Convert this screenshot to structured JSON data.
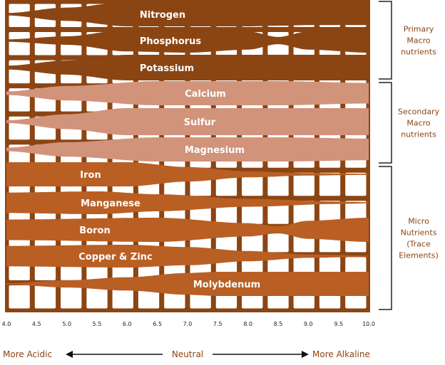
{
  "chart_data": {
    "type": "area",
    "title": "",
    "xlabel": "",
    "ylabel": "",
    "xlim": [
      4.0,
      10.0
    ],
    "x_ticks": [
      "4.0",
      "4.5",
      "5.0",
      "5.5",
      "6.0",
      "6.5",
      "7.0",
      "7.5",
      "8.0",
      "8.5",
      "9.0",
      "9.5",
      "10.0"
    ],
    "grid": true,
    "colors": {
      "frame": "#8B4513",
      "primary": "#8B4513",
      "secondary": "#D2937B",
      "micro": "#B95F24",
      "group_text": "#8B4513"
    },
    "series": [
      {
        "name": "Nitrogen",
        "group": "primary",
        "points": [
          [
            4.0,
            0.1
          ],
          [
            5.0,
            0.55
          ],
          [
            6.0,
            1.0
          ],
          [
            8.0,
            1.0
          ],
          [
            8.5,
            0.95
          ],
          [
            9.0,
            0.9
          ],
          [
            10.0,
            0.9
          ]
        ]
      },
      {
        "name": "Phosphorus",
        "group": "primary",
        "points": [
          [
            4.0,
            0.1
          ],
          [
            5.0,
            0.35
          ],
          [
            6.0,
            0.9
          ],
          [
            7.0,
            1.0
          ],
          [
            8.0,
            0.75
          ],
          [
            8.5,
            0.3
          ],
          [
            9.0,
            0.75
          ],
          [
            10.0,
            1.0
          ]
        ]
      },
      {
        "name": "Potassium",
        "group": "primary",
        "points": [
          [
            4.0,
            0.15
          ],
          [
            5.0,
            0.55
          ],
          [
            6.0,
            1.0
          ],
          [
            10.0,
            1.0
          ]
        ]
      },
      {
        "name": "Calcium",
        "group": "secondary",
        "points": [
          [
            4.0,
            0.15
          ],
          [
            5.0,
            0.6
          ],
          [
            6.5,
            1.0
          ],
          [
            8.5,
            1.0
          ],
          [
            10.0,
            0.85
          ]
        ]
      },
      {
        "name": "Sulfur",
        "group": "secondary",
        "points": [
          [
            4.0,
            0.1
          ],
          [
            5.0,
            0.55
          ],
          [
            6.0,
            1.0
          ],
          [
            10.0,
            1.0
          ]
        ]
      },
      {
        "name": "Magnesium",
        "group": "secondary",
        "points": [
          [
            4.0,
            0.15
          ],
          [
            5.0,
            0.6
          ],
          [
            6.5,
            1.0
          ],
          [
            8.5,
            1.0
          ],
          [
            10.0,
            0.9
          ]
        ]
      },
      {
        "name": "Iron",
        "group": "micro",
        "points": [
          [
            4.0,
            1.0
          ],
          [
            6.0,
            1.0
          ],
          [
            7.0,
            0.6
          ],
          [
            8.0,
            0.25
          ],
          [
            9.0,
            0.1
          ],
          [
            10.0,
            0.05
          ]
        ]
      },
      {
        "name": "Manganese",
        "group": "micro",
        "points": [
          [
            4.0,
            0.9
          ],
          [
            5.5,
            1.0
          ],
          [
            6.5,
            0.75
          ],
          [
            8.0,
            0.35
          ],
          [
            9.5,
            0.1
          ],
          [
            10.0,
            0.05
          ]
        ]
      },
      {
        "name": "Boron",
        "group": "micro",
        "points": [
          [
            4.0,
            0.85
          ],
          [
            6.5,
            1.0
          ],
          [
            8.0,
            0.55
          ],
          [
            8.5,
            0.3
          ],
          [
            9.0,
            0.75
          ],
          [
            10.0,
            1.0
          ]
        ]
      },
      {
        "name": "Copper & Zinc",
        "group": "micro",
        "points": [
          [
            4.0,
            0.9
          ],
          [
            6.0,
            1.0
          ],
          [
            7.0,
            0.8
          ],
          [
            8.0,
            0.45
          ],
          [
            9.0,
            0.15
          ],
          [
            10.0,
            0.05
          ]
        ]
      },
      {
        "name": "Molybdenum",
        "group": "micro",
        "points": [
          [
            4.0,
            0.05
          ],
          [
            5.0,
            0.3
          ],
          [
            6.0,
            0.55
          ],
          [
            7.0,
            0.9
          ],
          [
            7.5,
            1.0
          ],
          [
            10.0,
            1.0
          ]
        ]
      }
    ],
    "groups": [
      {
        "key": "primary",
        "label_lines": [
          "Primary",
          "Macro",
          "nutrients"
        ]
      },
      {
        "key": "secondary",
        "label_lines": [
          "Secondary",
          "Macro",
          "nutrients"
        ]
      },
      {
        "key": "micro",
        "label_lines": [
          "Micro",
          "Nutrients",
          "(Trace",
          "Elements)"
        ]
      }
    ],
    "footer": {
      "left": "More Acidic",
      "center": "Neutral",
      "right": "More Alkaline"
    }
  }
}
